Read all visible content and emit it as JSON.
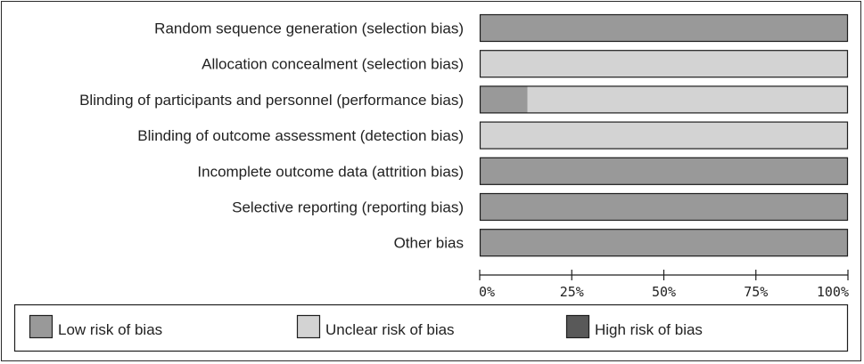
{
  "chart_data": {
    "type": "bar",
    "orientation": "horizontal",
    "stacked": true,
    "categories": [
      "Random sequence generation (selection bias)",
      "Allocation concealment (selection bias)",
      "Blinding of participants and personnel (performance bias)",
      "Blinding of outcome assessment (detection bias)",
      "Incomplete outcome data (attrition bias)",
      "Selective reporting (reporting bias)",
      "Other bias"
    ],
    "series": [
      {
        "name": "Low risk of bias",
        "color": "#999999",
        "values": [
          100,
          0,
          13,
          0,
          100,
          100,
          100
        ]
      },
      {
        "name": "Unclear risk of bias",
        "color": "#d3d3d3",
        "values": [
          0,
          100,
          87,
          100,
          0,
          0,
          0
        ]
      },
      {
        "name": "High risk of bias",
        "color": "#595959",
        "values": [
          0,
          0,
          0,
          0,
          0,
          0,
          0
        ]
      }
    ],
    "xlim": [
      0,
      100
    ],
    "xticks": [
      "0%",
      "25%",
      "50%",
      "75%",
      "100%"
    ],
    "legend_position": "bottom",
    "grid": false
  }
}
